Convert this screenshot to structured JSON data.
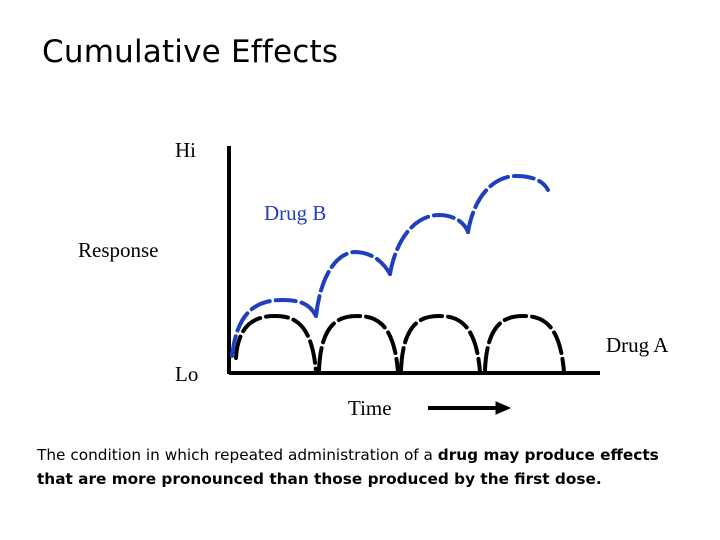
{
  "title": "Cumulative Effects",
  "axis": {
    "y_high_label": "Hi",
    "y_low_label": "Lo",
    "y_label": "Response",
    "x_label": "Time"
  },
  "series": {
    "drug_b_label": "Drug B",
    "drug_a_label": "Drug A",
    "drug_b_color": "#1f3fbf",
    "drug_a_color": "#000000"
  },
  "caption": {
    "part1": "The condition in which repeated administration of a ",
    "part2": "drug may produce effects that are more pronounced than those produced by the first dose."
  }
}
